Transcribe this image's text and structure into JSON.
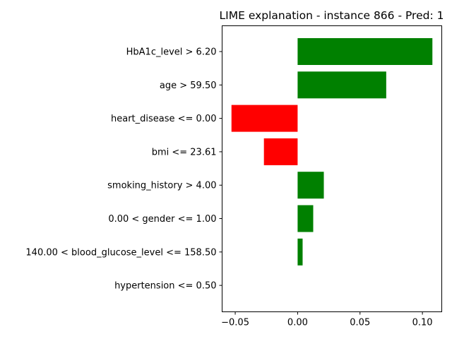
{
  "chart_data": {
    "type": "bar",
    "orientation": "horizontal",
    "title": "LIME explanation - instance 866 - Pred: 1",
    "xlabel": "",
    "ylabel": "",
    "categories": [
      "HbA1c_level > 6.20",
      "age > 59.50",
      "heart_disease <= 0.00",
      "bmi <= 23.61",
      "smoking_history > 4.00",
      "0.00 < gender <= 1.00",
      "140.00 < blood_glucose_level <= 158.50",
      "hypertension <= 0.50"
    ],
    "values": [
      0.108,
      0.071,
      -0.053,
      -0.027,
      0.021,
      0.0125,
      0.004,
      0.0
    ],
    "xlim": [
      -0.0605,
      0.1155
    ],
    "xticks": [
      -0.05,
      0.0,
      0.05,
      0.1
    ],
    "xtick_labels": [
      "−0.05",
      "0.00",
      "0.05",
      "0.10"
    ],
    "grid": false,
    "colors": {
      "positive": "#008000",
      "negative": "#ff0000"
    }
  }
}
